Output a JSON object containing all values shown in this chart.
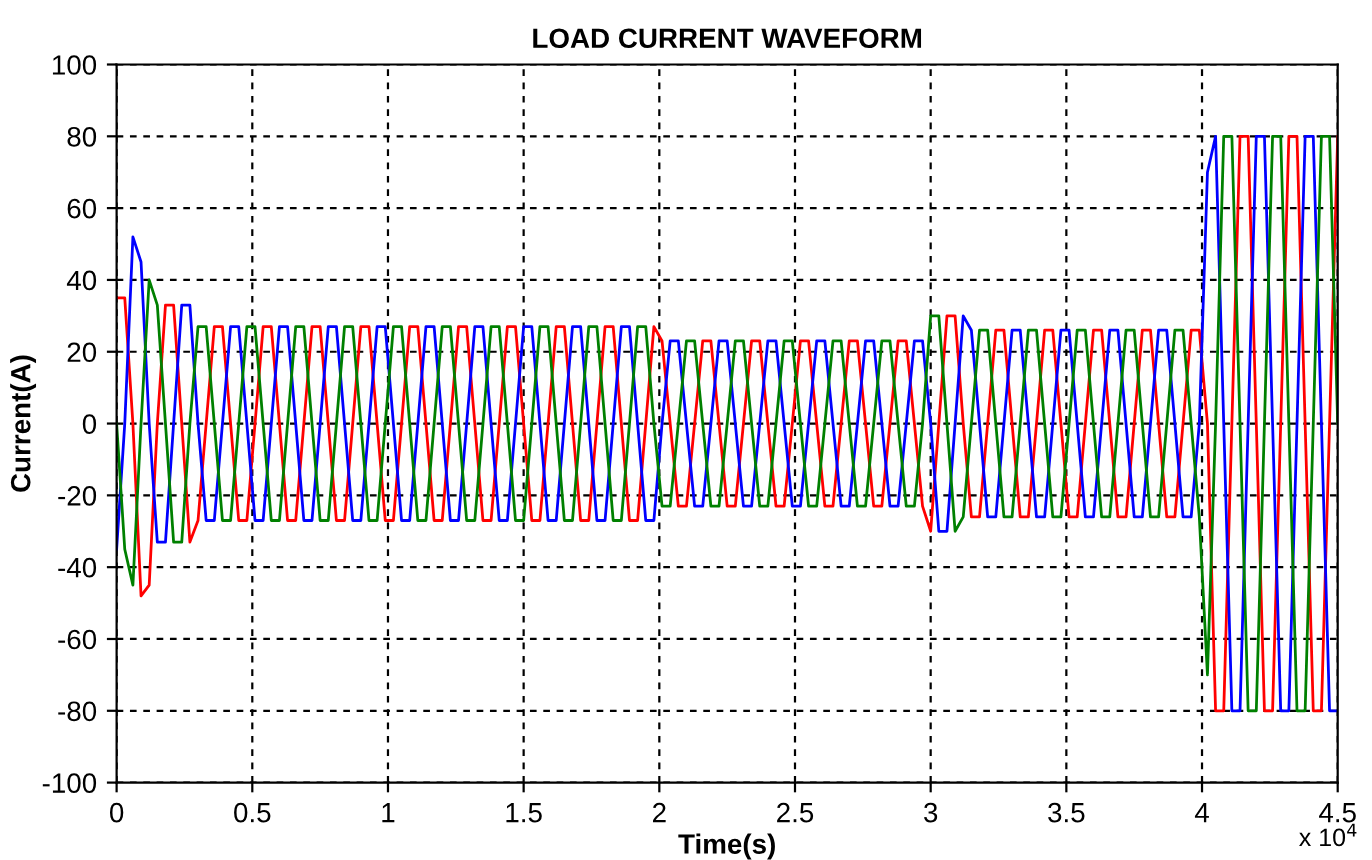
{
  "chart_data": {
    "type": "line",
    "title": "LOAD CURRENT WAVEFORM",
    "xlabel": "Time(s)",
    "ylabel": "Current(A)",
    "annotations": [
      "x 10$^{4}$"
    ],
    "x": [
      0,
      0.03,
      0.06,
      0.09,
      0.12,
      0.15,
      0.18,
      0.21,
      0.24,
      0.27,
      0.3,
      0.33,
      0.36,
      0.39,
      0.42,
      0.45,
      0.48,
      0.51,
      0.54,
      0.57,
      0.6,
      0.63,
      0.66,
      0.69,
      0.72,
      0.75,
      0.78,
      0.81,
      0.84,
      0.87,
      0.9,
      0.93,
      0.96,
      0.99,
      1.02,
      1.05,
      1.08,
      1.11,
      1.14,
      1.17,
      1.2,
      1.23,
      1.26,
      1.29,
      1.32,
      1.35,
      1.38,
      1.41,
      1.44,
      1.47,
      1.5,
      1.53,
      1.56,
      1.59,
      1.62,
      1.65,
      1.68,
      1.71,
      1.74,
      1.77,
      1.8,
      1.83,
      1.86,
      1.89,
      1.92,
      1.95,
      1.98,
      2.01,
      2.04,
      2.07,
      2.1,
      2.13,
      2.16,
      2.19,
      2.22,
      2.25,
      2.28,
      2.31,
      2.34,
      2.37,
      2.4,
      2.43,
      2.46,
      2.49,
      2.52,
      2.55,
      2.58,
      2.61,
      2.64,
      2.67,
      2.7,
      2.73,
      2.76,
      2.79,
      2.82,
      2.85,
      2.88,
      2.91,
      2.94,
      2.97,
      3,
      3.03,
      3.06,
      3.09,
      3.12,
      3.15,
      3.18,
      3.21,
      3.24,
      3.27,
      3.3,
      3.33,
      3.36,
      3.39,
      3.42,
      3.45,
      3.48,
      3.51,
      3.54,
      3.57,
      3.6,
      3.63,
      3.66,
      3.69,
      3.72,
      3.75,
      3.78,
      3.81,
      3.84,
      3.87,
      3.9,
      3.93,
      3.96,
      3.99,
      4.02,
      4.05,
      4.08,
      4.11,
      4.14,
      4.17,
      4.2,
      4.23,
      4.26,
      4.29,
      4.32,
      4.35,
      4.38,
      4.41,
      4.44,
      4.47,
      4.5
    ],
    "series": [
      {
        "color": "#ff0000",
        "values": [
          35,
          35,
          0,
          -48,
          -45,
          0,
          33,
          33,
          0,
          -33,
          -27,
          0,
          27,
          27,
          0,
          -27,
          -27,
          0,
          27,
          27,
          0,
          -27,
          -27,
          0,
          27,
          27,
          0,
          -27,
          -27,
          0,
          27,
          27,
          0,
          -27,
          -27,
          0,
          27,
          27,
          0,
          -27,
          -27,
          0,
          27,
          27,
          0,
          -27,
          -27,
          0,
          27,
          27,
          0,
          -27,
          -27,
          0,
          27,
          27,
          0,
          -27,
          -27,
          0,
          27,
          27,
          0,
          -27,
          -27,
          0,
          27,
          23,
          0,
          -23,
          -23,
          0,
          23,
          23,
          0,
          -23,
          -23,
          0,
          23,
          23,
          0,
          -23,
          -23,
          0,
          23,
          23,
          0,
          -23,
          -23,
          0,
          23,
          23,
          0,
          -23,
          -23,
          0,
          23,
          23,
          0,
          -23,
          -30,
          0,
          30,
          30,
          0,
          -26,
          -26,
          0,
          26,
          26,
          0,
          -26,
          -26,
          0,
          26,
          26,
          0,
          -26,
          -26,
          0,
          26,
          26,
          0,
          -26,
          -26,
          0,
          26,
          26,
          0,
          -26,
          -26,
          0,
          26,
          26,
          0,
          -80,
          -80,
          0,
          80,
          80,
          0,
          -80,
          -80,
          0,
          80,
          80,
          0,
          -80,
          -80,
          0,
          80
        ]
      },
      {
        "color": "#0000ff",
        "values": [
          -35,
          0,
          52,
          45,
          0,
          -33,
          -33,
          0,
          33,
          33,
          0,
          -27,
          -27,
          0,
          27,
          27,
          0,
          -27,
          -27,
          0,
          27,
          27,
          0,
          -27,
          -27,
          0,
          27,
          27,
          0,
          -27,
          -27,
          0,
          27,
          27,
          0,
          -27,
          -27,
          0,
          27,
          27,
          0,
          -27,
          -27,
          0,
          27,
          27,
          0,
          -27,
          -27,
          0,
          27,
          27,
          0,
          -27,
          -27,
          0,
          27,
          27,
          0,
          -27,
          -27,
          0,
          27,
          27,
          0,
          -27,
          -27,
          0,
          23,
          23,
          0,
          -23,
          -23,
          0,
          23,
          23,
          0,
          -23,
          -23,
          0,
          23,
          23,
          0,
          -23,
          -23,
          0,
          23,
          23,
          0,
          -23,
          -23,
          0,
          23,
          23,
          0,
          -23,
          -23,
          0,
          23,
          23,
          0,
          -30,
          -30,
          0,
          30,
          26,
          0,
          -26,
          -26,
          0,
          26,
          26,
          0,
          -26,
          -26,
          0,
          26,
          26,
          0,
          -26,
          -26,
          0,
          26,
          26,
          0,
          -26,
          -26,
          0,
          26,
          26,
          0,
          -26,
          -26,
          0,
          70,
          80,
          0,
          -80,
          -80,
          0,
          80,
          80,
          0,
          -80,
          -80,
          0,
          80,
          80,
          0,
          -80,
          -80
        ]
      },
      {
        "color": "#008000",
        "values": [
          0,
          -35,
          -45,
          0,
          40,
          33,
          0,
          -33,
          -33,
          0,
          27,
          27,
          0,
          -27,
          -27,
          0,
          27,
          27,
          0,
          -27,
          -27,
          0,
          27,
          27,
          0,
          -27,
          -27,
          0,
          27,
          27,
          0,
          -27,
          -27,
          0,
          27,
          27,
          0,
          -27,
          -27,
          0,
          27,
          27,
          0,
          -27,
          -27,
          0,
          27,
          27,
          0,
          -27,
          -27,
          0,
          27,
          27,
          0,
          -27,
          -27,
          0,
          27,
          27,
          0,
          -27,
          -27,
          0,
          27,
          27,
          0,
          -23,
          -23,
          0,
          23,
          23,
          0,
          -23,
          -23,
          0,
          23,
          23,
          0,
          -23,
          -23,
          0,
          23,
          23,
          0,
          -23,
          -23,
          0,
          23,
          23,
          0,
          -23,
          -23,
          0,
          23,
          23,
          0,
          -23,
          -23,
          0,
          30,
          30,
          0,
          -30,
          -26,
          0,
          26,
          26,
          0,
          -26,
          -26,
          0,
          26,
          26,
          0,
          -26,
          -26,
          0,
          26,
          26,
          0,
          -26,
          -26,
          0,
          26,
          26,
          0,
          -26,
          -26,
          0,
          26,
          26,
          0,
          -26,
          -70,
          0,
          80,
          80,
          0,
          -80,
          -80,
          0,
          80,
          80,
          0,
          -80,
          -80,
          0,
          80,
          80,
          0
        ]
      }
    ],
    "xlim": [
      0,
      4.5
    ],
    "xticks": [
      0,
      0.5,
      1,
      1.5,
      2,
      2.5,
      3,
      3.5,
      4,
      4.5
    ],
    "ylim": [
      -100,
      100
    ],
    "yticks": [
      -100,
      -80,
      -60,
      -40,
      -20,
      0,
      20,
      40,
      60,
      80,
      100
    ],
    "grid": true,
    "legend": false,
    "marker": "none",
    "line_style": "solid"
  }
}
